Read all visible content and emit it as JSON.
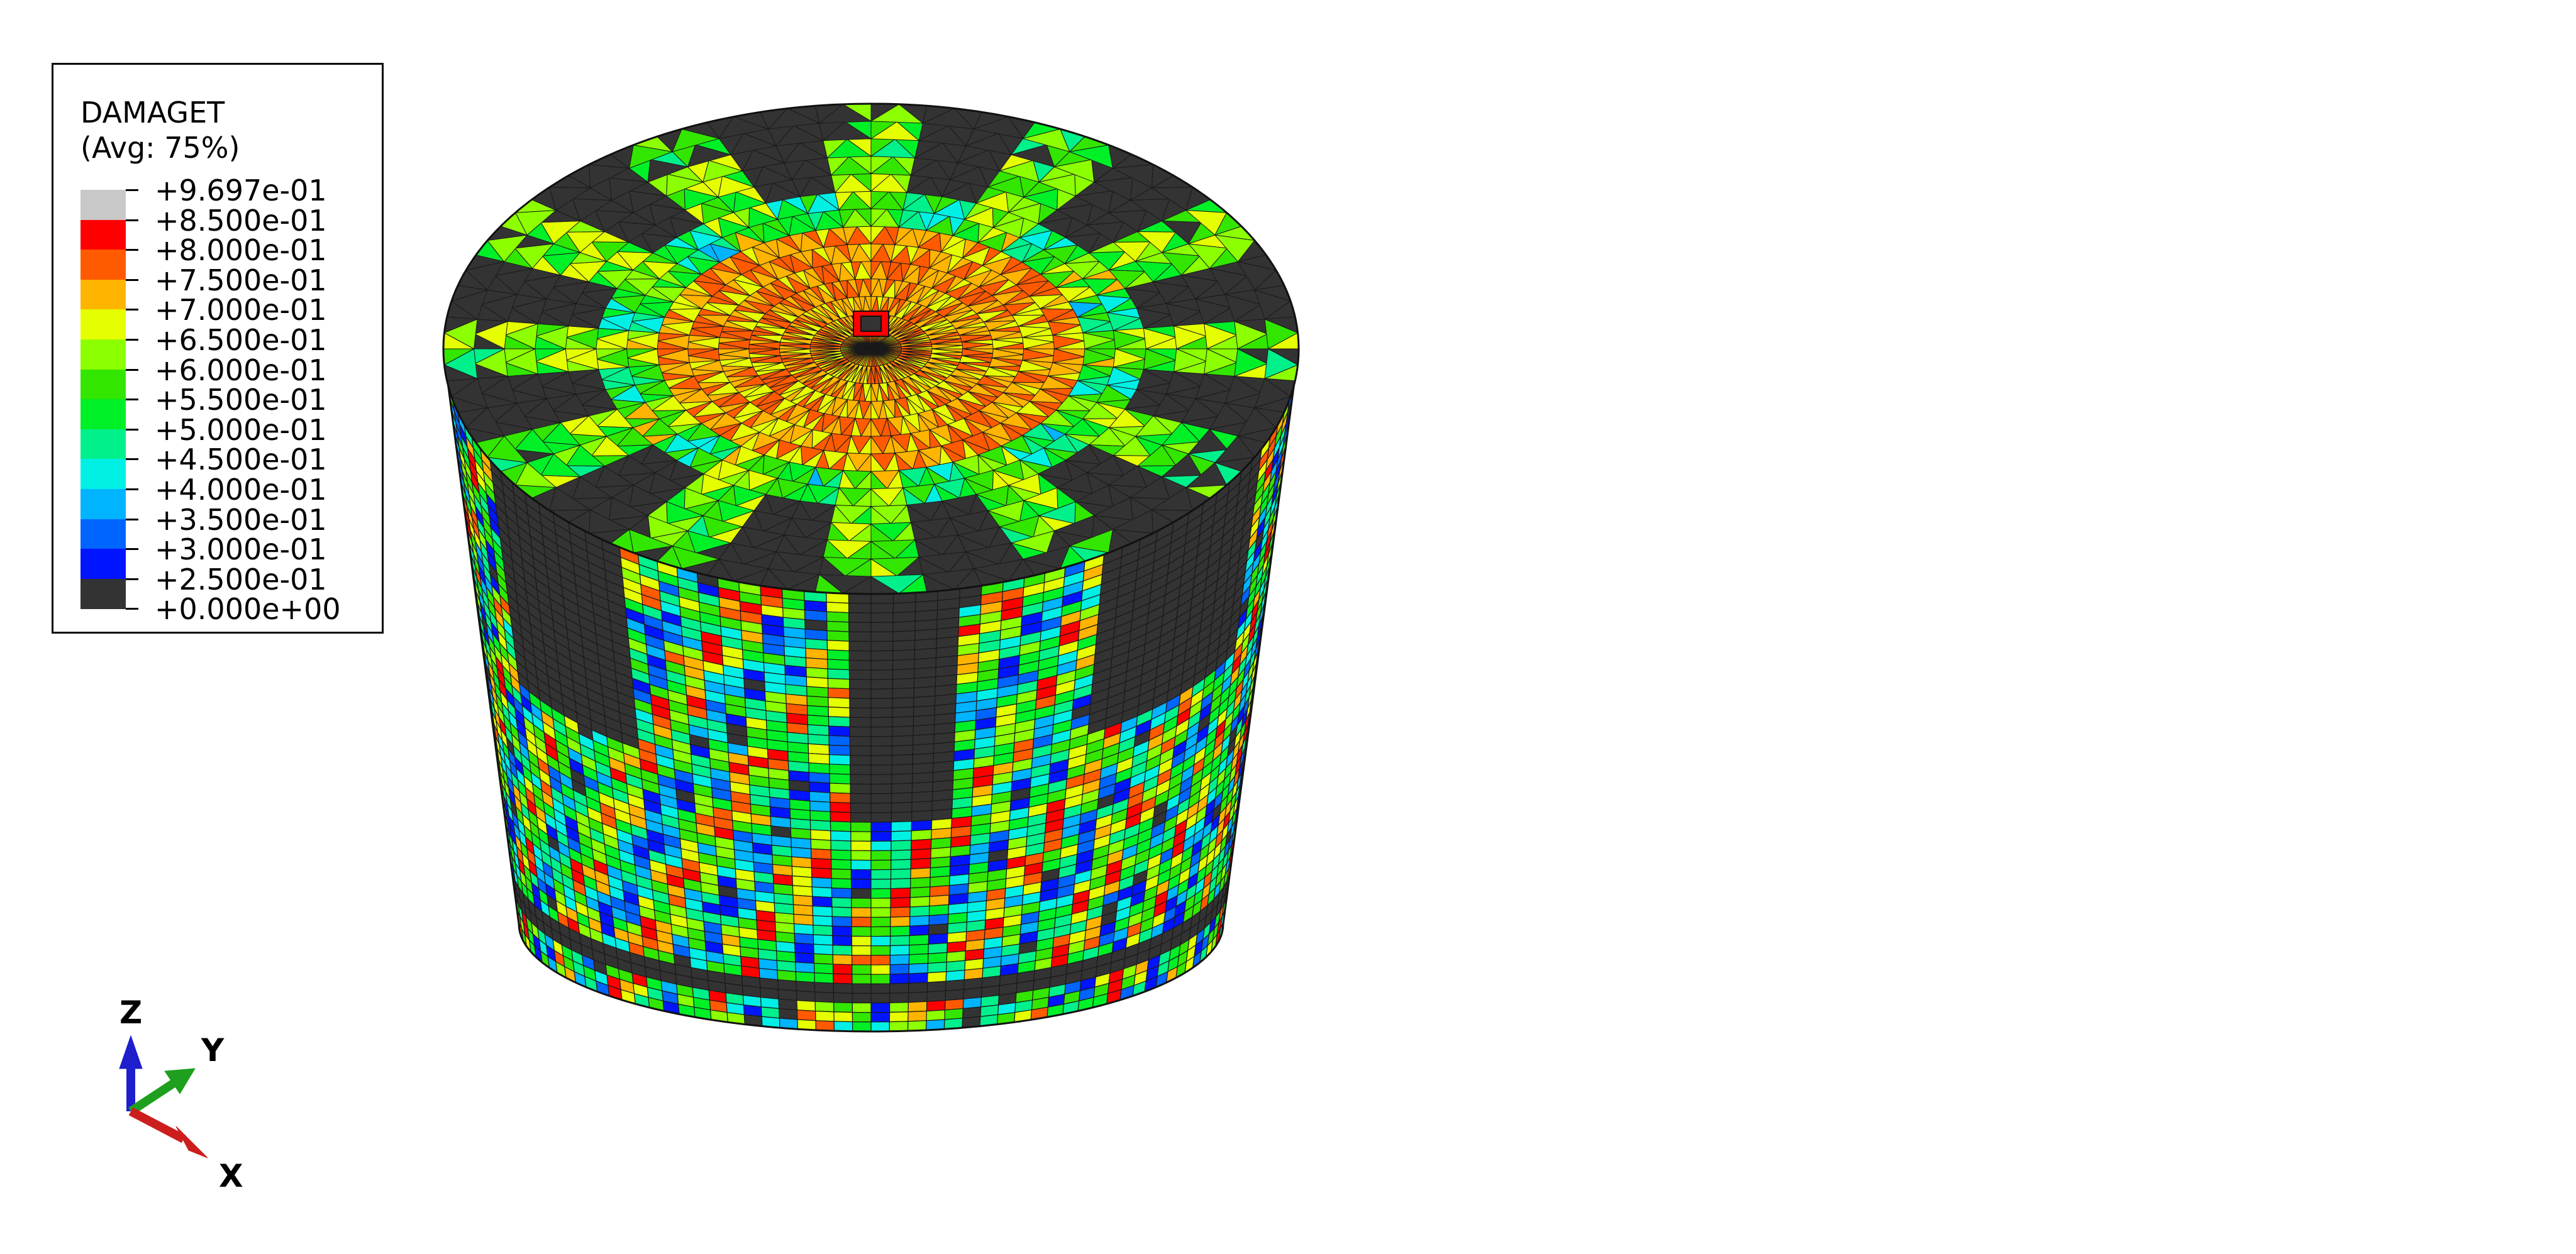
{
  "legend": {
    "variable": "DAMAGET",
    "averaging": "(Avg: 75%)",
    "levels": [
      {
        "label": "+9.697e-01",
        "color": "#c8c8c8"
      },
      {
        "label": "+8.500e-01",
        "color": "#ff0000"
      },
      {
        "label": "+8.000e-01",
        "color": "#ff5a00"
      },
      {
        "label": "+7.500e-01",
        "color": "#ffb400"
      },
      {
        "label": "+7.000e-01",
        "color": "#e6ff00"
      },
      {
        "label": "+6.500e-01",
        "color": "#8cff00"
      },
      {
        "label": "+6.000e-01",
        "color": "#32e600"
      },
      {
        "label": "+5.500e-01",
        "color": "#00f028"
      },
      {
        "label": "+5.000e-01",
        "color": "#00f08c"
      },
      {
        "label": "+4.500e-01",
        "color": "#00f0e6"
      },
      {
        "label": "+4.000e-01",
        "color": "#00b4ff"
      },
      {
        "label": "+3.500e-01",
        "color": "#0064ff"
      },
      {
        "label": "+3.000e-01",
        "color": "#0014ff"
      },
      {
        "label": "+2.500e-01",
        "color": "#000000"
      },
      {
        "label": "+0.000e+00",
        "color": "#000000"
      }
    ],
    "band_colors": [
      "#c8c8c8",
      "#ff0000",
      "#ff5a00",
      "#ffb400",
      "#e6ff00",
      "#8cff00",
      "#32e600",
      "#00f028",
      "#00f08c",
      "#00f0e6",
      "#00b4ff",
      "#0064ff",
      "#0014ff",
      "#333333"
    ]
  },
  "triad": {
    "z_label": "Z",
    "y_label": "Y",
    "x_label": "X",
    "z_color": "#1e1ecd",
    "y_color": "#1ea01e",
    "x_color": "#cd1e1e"
  },
  "model": {
    "shape": "cylinder",
    "palette": [
      "#333333",
      "#0014ff",
      "#0064ff",
      "#00b4ff",
      "#00f0e6",
      "#00f08c",
      "#00f028",
      "#32e600",
      "#8cff00",
      "#e6ff00",
      "#ffb400",
      "#ff5a00",
      "#ff0000"
    ]
  }
}
